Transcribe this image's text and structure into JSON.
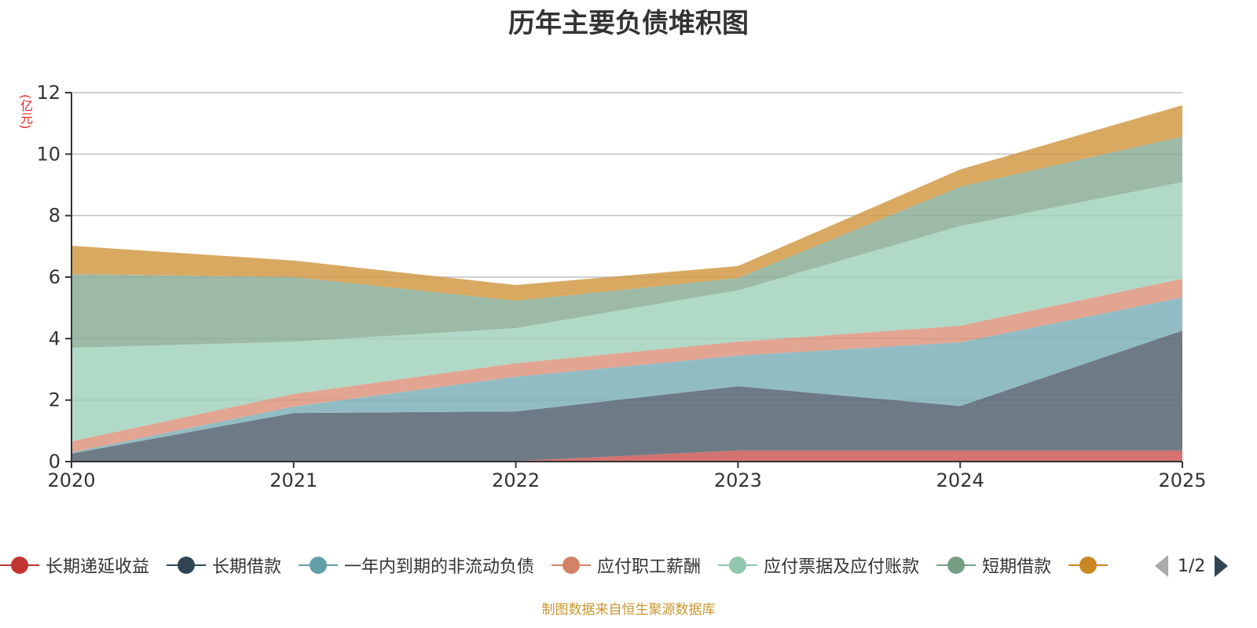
{
  "chart_data": {
    "type": "area",
    "stacked": true,
    "title": "历年主要负债堆积图",
    "ylabel": "(亿元)",
    "xlabel": "",
    "x": [
      "2020",
      "2021",
      "2022",
      "2023",
      "2024",
      "2025"
    ],
    "ylim": [
      0,
      12
    ],
    "yticks": [
      "0",
      "2",
      "4",
      "6",
      "8",
      "10",
      "12"
    ],
    "grid": true,
    "legend_position": "bottom",
    "series": [
      {
        "name": "长期递延收益",
        "color": "#c23531",
        "fill": "#d47370",
        "values": [
          0.02,
          0.02,
          0.02,
          0.36,
          0.36,
          0.36
        ]
      },
      {
        "name": "长期借款",
        "color": "#2f4554",
        "fill": "#6e7b87",
        "values": [
          0.24,
          1.56,
          1.61,
          2.09,
          1.45,
          3.9
        ]
      },
      {
        "name": "一年内到期的非流动负债",
        "color": "#61a0a8",
        "fill": "#92bcc3",
        "values": [
          0.04,
          0.21,
          1.13,
          1.0,
          2.07,
          1.08
        ]
      },
      {
        "name": "应付职工薪酬",
        "color": "#d48265",
        "fill": "#e2a592",
        "values": [
          0.36,
          0.41,
          0.44,
          0.45,
          0.54,
          0.61
        ]
      },
      {
        "name": "应付票据及应付账款",
        "color": "#91c7ae",
        "fill": "#b1d9c7",
        "values": [
          3.04,
          1.7,
          1.14,
          1.67,
          3.24,
          3.14
        ]
      },
      {
        "name": "短期借款",
        "color": "#749f83",
        "fill": "#9dbaa7",
        "values": [
          2.4,
          2.1,
          0.89,
          0.4,
          1.28,
          1.48
        ]
      },
      {
        "name": "",
        "color": "#ca8622",
        "fill": "#d9a962",
        "values": [
          0.92,
          0.54,
          0.51,
          0.39,
          0.56,
          1.02
        ]
      }
    ]
  },
  "legend": {
    "pager_text": "1/2"
  },
  "footer": {
    "source": "制图数据来自恒生聚源数据库"
  }
}
